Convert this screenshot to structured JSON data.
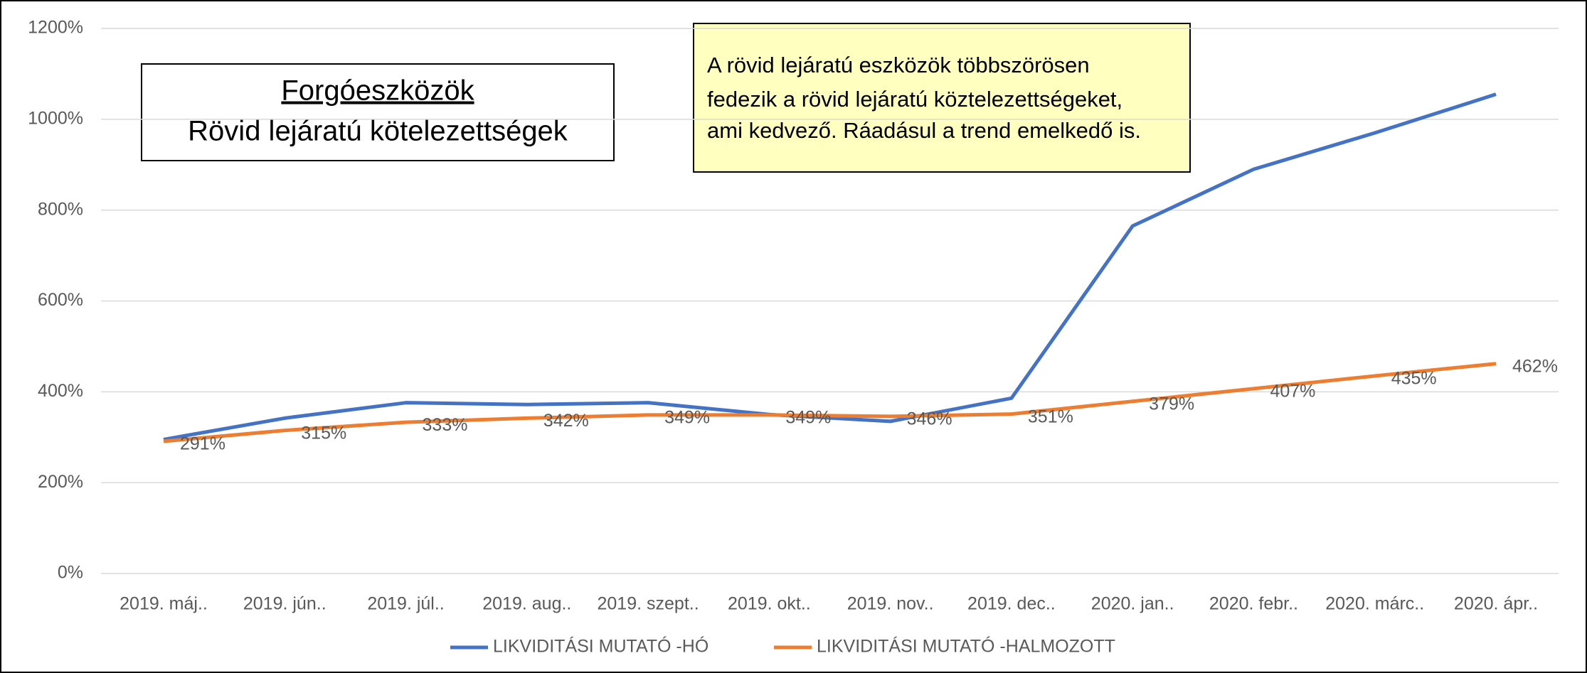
{
  "chart_data": {
    "type": "line",
    "annotations": [
      "Forgóeszközök",
      "Rövid lejáratú kötelezettségek"
    ],
    "note": [
      "A rövid lejáratú eszközök többszörösen",
      "fedezik a rövid lejáratú köztelezettségeket,",
      "ami kedvező. Ráadásul a trend emelkedő is."
    ],
    "categories": [
      "2019. máj..",
      "2019. jún..",
      "2019. júl..",
      "2019. aug..",
      "2019. szept..",
      "2019. okt..",
      "2019. nov..",
      "2019. dec..",
      "2020. jan..",
      "2020. febr..",
      "2020. márc..",
      "2020. ápr.."
    ],
    "series": [
      {
        "name": "LIKVIDITÁSI MUTATÓ -HÓ",
        "color": "#4472c4",
        "values": [
          295,
          342,
          376,
          372,
          376,
          350,
          335,
          386,
          765,
          890,
          970,
          1055
        ]
      },
      {
        "name": "LIKVIDITÁSI MUTATÓ -HALMOZOTT",
        "color": "#ed7d31",
        "values": [
          291,
          315,
          333,
          342,
          349,
          349,
          346,
          351,
          379,
          407,
          435,
          462
        ],
        "value_labels": [
          "291%",
          "315%",
          "333%",
          "342%",
          "349%",
          "349%",
          "346%",
          "351%",
          "379%",
          "407%",
          "435%",
          "462%"
        ]
      }
    ],
    "ylim": [
      0,
      1200
    ],
    "yticks": [
      {
        "value": 0,
        "label": "0%"
      },
      {
        "value": 200,
        "label": "200%"
      },
      {
        "value": 400,
        "label": "400%"
      },
      {
        "value": 600,
        "label": "600%"
      },
      {
        "value": 800,
        "label": "800%"
      },
      {
        "value": 1000,
        "label": "1000%"
      },
      {
        "value": 1200,
        "label": "1200%"
      }
    ],
    "grid": true,
    "legend": "bottom"
  }
}
